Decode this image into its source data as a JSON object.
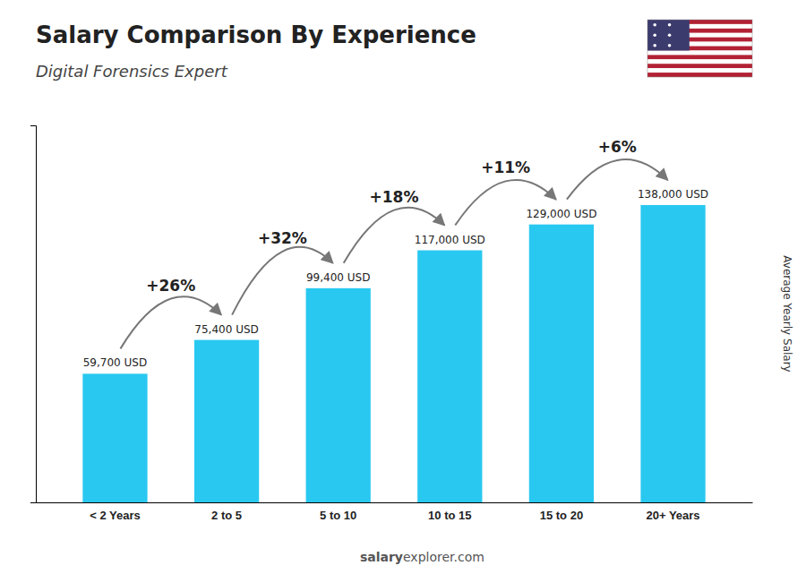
{
  "chart_data": {
    "type": "bar",
    "title": "Salary Comparison By Experience",
    "subtitle": "Digital Forensics Expert",
    "y_label": "Average Yearly Salary",
    "categories": [
      "< 2 Years",
      "2 to 5",
      "5 to 10",
      "10 to 15",
      "15 to 20",
      "20+ Years"
    ],
    "values": [
      59700,
      75400,
      99400,
      117000,
      129000,
      138000
    ],
    "value_labels": [
      "59,700 USD",
      "75,400 USD",
      "99,400 USD",
      "117,000 USD",
      "129,000 USD",
      "138,000 USD"
    ],
    "data_labels": true,
    "annotations": [
      "+26%",
      "+32%",
      "+18%",
      "+11%",
      "+6%"
    ],
    "watermark": [
      "salary",
      "explorer.com"
    ],
    "color": "#29c8f0",
    "ylim": [
      0,
      175000
    ],
    "yticks": [],
    "tick_labels": "x",
    "grid": false
  }
}
